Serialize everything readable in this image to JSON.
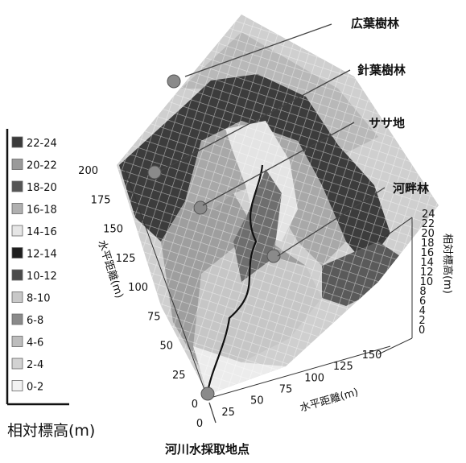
{
  "chart_data": {
    "type": "surface",
    "title": "",
    "x_axis": {
      "label": "水平距離(m)",
      "ticks": [
        "0",
        "25",
        "50",
        "75",
        "100",
        "125",
        "150"
      ],
      "range": [
        0,
        150
      ]
    },
    "y_axis": {
      "label": "水平距離(m)",
      "ticks": [
        "0",
        "25",
        "50",
        "75",
        "100",
        "125",
        "150",
        "175",
        "200"
      ],
      "range": [
        0,
        200
      ]
    },
    "z_axis": {
      "label": "相対標高(m)",
      "ticks": [
        "0",
        "2",
        "4",
        "6",
        "8",
        "10",
        "12",
        "14",
        "16",
        "18",
        "20",
        "22",
        "24"
      ],
      "range": [
        0,
        24
      ]
    },
    "legend": {
      "title": "相対標高(m)",
      "placement": "left",
      "bands": [
        {
          "label": "22-24",
          "color": "#3a3a3a"
        },
        {
          "label": "20-22",
          "color": "#9a9a9a"
        },
        {
          "label": "18-20",
          "color": "#555555"
        },
        {
          "label": "16-18",
          "color": "#b0b0b0"
        },
        {
          "label": "14-16",
          "color": "#e6e6e6"
        },
        {
          "label": "12-14",
          "color": "#1e1e1e"
        },
        {
          "label": "10-12",
          "color": "#4a4a4a"
        },
        {
          "label": "8-10",
          "color": "#c8c8c8"
        },
        {
          "label": "6-8",
          "color": "#8a8a8a"
        },
        {
          "label": "4-6",
          "color": "#bdbdbd"
        },
        {
          "label": "2-4",
          "color": "#d2d2d2"
        },
        {
          "label": "0-2",
          "color": "#f2f2f2"
        }
      ]
    },
    "annotations": [
      {
        "label": "広葉樹林"
      },
      {
        "label": "針葉樹林"
      },
      {
        "label": "ササ地"
      },
      {
        "label": "河畔林"
      },
      {
        "label": "河川水採取地点"
      }
    ]
  }
}
